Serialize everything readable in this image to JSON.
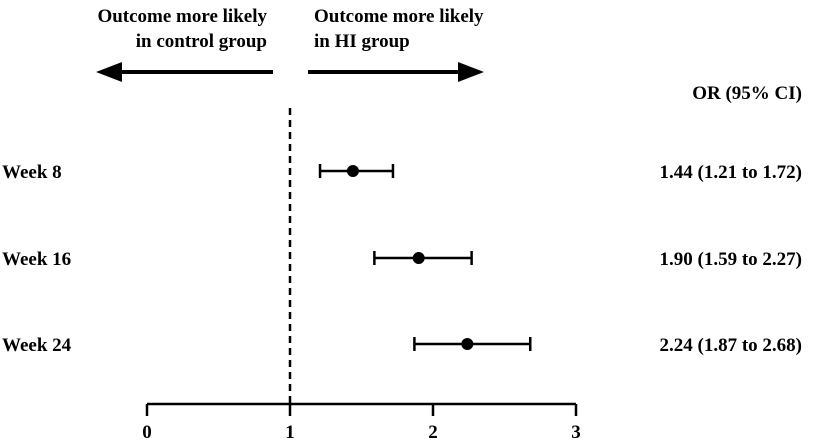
{
  "annotations": {
    "left_line1": "Outcome more likely",
    "left_line2": "in control group",
    "right_line1": "Outcome more likely",
    "right_line2": "in HI group"
  },
  "colors": {
    "ink": "#000000",
    "background": "#ffffff"
  },
  "chart_data": {
    "type": "forest",
    "title": "",
    "xlabel": "",
    "ylabel": "",
    "xlim": [
      0,
      3
    ],
    "x_ticks": [
      "0",
      "1",
      "2",
      "3"
    ],
    "reference_line": 1,
    "ci_column_header": "OR (95% CI)",
    "rows": [
      {
        "label": "Week 8",
        "estimate": 1.44,
        "lower": 1.21,
        "upper": 1.72,
        "text": "1.44 (1.21 to 1.72)"
      },
      {
        "label": "Week 16",
        "estimate": 1.9,
        "lower": 1.59,
        "upper": 2.27,
        "text": "1.90 (1.59 to 2.27)"
      },
      {
        "label": "Week 24",
        "estimate": 2.24,
        "lower": 1.87,
        "upper": 2.68,
        "text": "2.24 (1.87 to 2.68)"
      }
    ]
  }
}
